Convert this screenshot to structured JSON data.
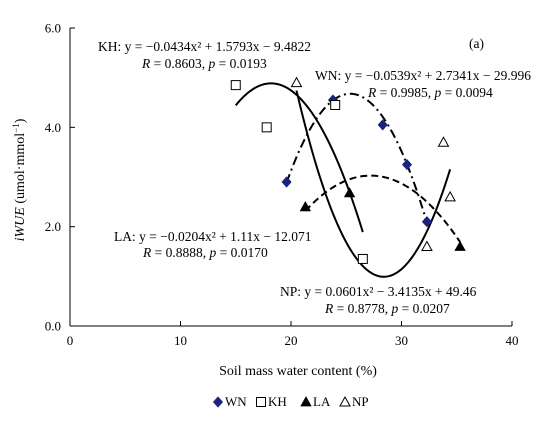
{
  "chart_data": {
    "type": "scatter",
    "panel_label": "(a)",
    "xlabel": "Soil mass water content (%)",
    "ylabel_main": "iWUE",
    "ylabel_unit": " (umol·mmol",
    "ylabel_sup": "−1",
    "ylabel_close": ")",
    "xlim": [
      0,
      40
    ],
    "ylim": [
      0,
      6
    ],
    "xticks": [
      0,
      10,
      20,
      30,
      40
    ],
    "yticks": [
      0,
      2,
      4,
      6
    ],
    "xtick_labels": [
      "0",
      "10",
      "20",
      "30",
      "40"
    ],
    "ytick_labels": [
      "0.0",
      "2.0",
      "4.0",
      "6.0"
    ],
    "grid": false,
    "legend_position": "bottom",
    "series": [
      {
        "name": "WN",
        "marker": "filled-diamond",
        "color": "#1a237e",
        "line_style": "dash-dot",
        "points": [
          [
            19.6,
            2.9
          ],
          [
            23.8,
            4.55
          ],
          [
            28.3,
            4.05
          ],
          [
            30.5,
            3.25
          ],
          [
            32.3,
            2.1
          ]
        ],
        "fit": {
          "a": -0.0539,
          "b": 2.7341,
          "c": -29.996,
          "x_range": [
            19.6,
            32.3
          ]
        },
        "equation": "WN: y = −0.0539x² + 2.7341x − 29.996",
        "stats": "R = 0.9985, p = 0.0094"
      },
      {
        "name": "KH",
        "marker": "open-square",
        "color": "#000000",
        "line_style": "solid",
        "points": [
          [
            15.0,
            4.85
          ],
          [
            17.8,
            4.0
          ],
          [
            24.0,
            4.45
          ],
          [
            26.5,
            1.35
          ]
        ],
        "fit": {
          "a": -0.0434,
          "b": 1.5793,
          "c": -9.4822,
          "x_range": [
            15.0,
            26.5
          ]
        },
        "equation": "KH: y = −0.0434x² + 1.5793x − 9.4822",
        "stats": "R = 0.8603, p = 0.0193"
      },
      {
        "name": "LA",
        "marker": "filled-triangle",
        "color": "#000000",
        "line_style": "dashed",
        "points": [
          [
            21.3,
            2.4
          ],
          [
            25.3,
            2.68
          ],
          [
            35.3,
            1.6
          ]
        ],
        "fit": {
          "a": -0.0204,
          "b": 1.11,
          "c": -12.071,
          "x_range": [
            21.3,
            35.3
          ]
        },
        "equation": "LA: y = −0.0204x² + 1.11x − 12.071",
        "stats": "R = 0.8888, p = 0.0170"
      },
      {
        "name": "NP",
        "marker": "open-triangle",
        "color": "#000000",
        "line_style": "solid",
        "points": [
          [
            20.5,
            4.9
          ],
          [
            32.3,
            1.6
          ],
          [
            33.8,
            3.7
          ],
          [
            34.4,
            2.6
          ]
        ],
        "fit": {
          "a": 0.0601,
          "b": -3.4135,
          "c": 49.46,
          "x_range": [
            20.5,
            34.4
          ]
        },
        "equation": "NP: y = 0.0601x² − 3.4135x + 49.46",
        "stats": "R = 0.8778, p = 0.0207"
      }
    ]
  }
}
